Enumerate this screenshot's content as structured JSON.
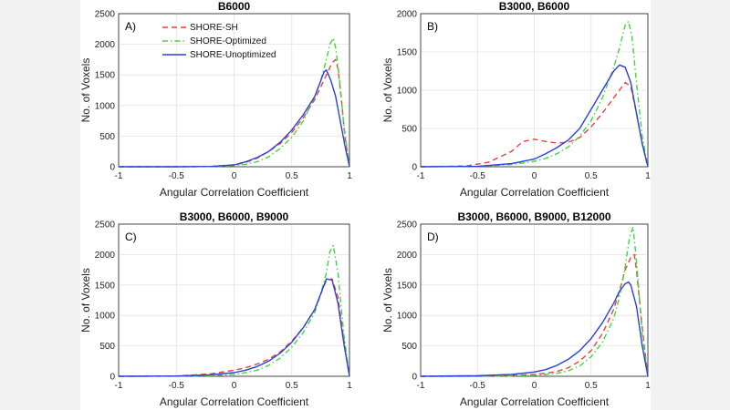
{
  "chart_data": [
    {
      "type": "line",
      "title": "B6000",
      "panel_label": "A)",
      "xlabel": "Angular Correlation Coefficient",
      "ylabel": "No. of Voxels",
      "xlim": [
        -1,
        1
      ],
      "ylim": [
        0,
        2500
      ],
      "xticks": [
        "-1",
        "-0.5",
        "0",
        "0.5",
        "1"
      ],
      "yticks": [
        "0",
        "500",
        "1000",
        "1500",
        "2000",
        "2500"
      ],
      "grid": true,
      "legend": {
        "placement": "top-center"
      },
      "series": [
        {
          "name": "SHORE-SH",
          "color": "#e8423f",
          "dash": "dash",
          "x": [
            -1,
            -0.5,
            -0.2,
            0,
            0.1,
            0.2,
            0.3,
            0.4,
            0.5,
            0.6,
            0.7,
            0.75,
            0.8,
            0.85,
            0.88,
            0.9,
            0.93,
            0.96,
            1
          ],
          "y": [
            0,
            0,
            5,
            30,
            70,
            140,
            250,
            380,
            560,
            800,
            1100,
            1300,
            1500,
            1700,
            1750,
            1600,
            1100,
            500,
            0
          ]
        },
        {
          "name": "SHORE-Optimized",
          "color": "#3fd83f",
          "dash": "dashdot",
          "x": [
            -1,
            -0.5,
            -0.2,
            0,
            0.1,
            0.2,
            0.3,
            0.4,
            0.5,
            0.6,
            0.7,
            0.75,
            0.8,
            0.83,
            0.86,
            0.88,
            0.91,
            0.95,
            1
          ],
          "y": [
            0,
            0,
            3,
            20,
            40,
            80,
            160,
            300,
            480,
            750,
            1150,
            1400,
            1750,
            2000,
            2100,
            1950,
            1500,
            700,
            0
          ]
        },
        {
          "name": "SHORE-Unoptimized",
          "color": "#2a3fe0",
          "dash": "solid",
          "x": [
            -1,
            -0.5,
            -0.2,
            0,
            0.1,
            0.2,
            0.3,
            0.4,
            0.5,
            0.6,
            0.7,
            0.75,
            0.78,
            0.8,
            0.84,
            0.88,
            0.92,
            0.96,
            1
          ],
          "y": [
            0,
            0,
            5,
            30,
            80,
            150,
            250,
            400,
            600,
            850,
            1150,
            1400,
            1550,
            1580,
            1400,
            1150,
            750,
            350,
            0
          ]
        }
      ]
    },
    {
      "type": "line",
      "title": "B3000, B6000",
      "panel_label": "B)",
      "xlabel": "Angular Correlation Coefficient",
      "ylabel": "No. of Voxels",
      "xlim": [
        -1,
        1
      ],
      "ylim": [
        0,
        2000
      ],
      "xticks": [
        "-1",
        "-0.5",
        "0",
        "0.5",
        "1"
      ],
      "yticks": [
        "0",
        "500",
        "1000",
        "1500",
        "2000"
      ],
      "grid": true,
      "series": [
        {
          "name": "SHORE-SH",
          "color": "#e8423f",
          "dash": "dash",
          "x": [
            -1,
            -0.6,
            -0.4,
            -0.2,
            -0.1,
            0,
            0.1,
            0.2,
            0.3,
            0.4,
            0.5,
            0.6,
            0.7,
            0.75,
            0.8,
            0.85,
            0.9,
            0.95,
            1
          ],
          "y": [
            0,
            10,
            60,
            200,
            330,
            360,
            330,
            310,
            320,
            380,
            520,
            700,
            900,
            1000,
            1100,
            1050,
            700,
            300,
            0
          ]
        },
        {
          "name": "SHORE-Optimized",
          "color": "#3fd83f",
          "dash": "dashdot",
          "x": [
            -1,
            -0.5,
            -0.2,
            0,
            0.1,
            0.2,
            0.3,
            0.4,
            0.5,
            0.6,
            0.7,
            0.75,
            0.8,
            0.83,
            0.86,
            0.9,
            0.95,
            1
          ],
          "y": [
            0,
            5,
            30,
            70,
            110,
            170,
            260,
            400,
            600,
            900,
            1300,
            1550,
            1850,
            1900,
            1700,
            1100,
            400,
            0
          ]
        },
        {
          "name": "SHORE-Unoptimized",
          "color": "#2a3fe0",
          "dash": "solid",
          "x": [
            -1,
            -0.5,
            -0.2,
            0,
            0.1,
            0.2,
            0.3,
            0.4,
            0.5,
            0.6,
            0.7,
            0.75,
            0.8,
            0.85,
            0.9,
            0.95,
            1
          ],
          "y": [
            0,
            5,
            40,
            100,
            170,
            250,
            350,
            500,
            750,
            1000,
            1250,
            1330,
            1300,
            1100,
            700,
            300,
            0
          ]
        }
      ]
    },
    {
      "type": "line",
      "title": "B3000, B6000, B9000",
      "panel_label": "C)",
      "xlabel": "Angular Correlation Coefficient",
      "ylabel": "No. of Voxels",
      "xlim": [
        -1,
        1
      ],
      "ylim": [
        0,
        2500
      ],
      "xticks": [
        "-1",
        "-0.5",
        "0",
        "0.5",
        "1"
      ],
      "yticks": [
        "0",
        "500",
        "1000",
        "1500",
        "2000",
        "2500"
      ],
      "grid": true,
      "series": [
        {
          "name": "SHORE-SH",
          "color": "#e8423f",
          "dash": "dash",
          "x": [
            -1,
            -0.5,
            -0.2,
            0,
            0.1,
            0.2,
            0.3,
            0.4,
            0.5,
            0.6,
            0.7,
            0.75,
            0.8,
            0.85,
            0.9,
            0.95,
            1
          ],
          "y": [
            0,
            5,
            40,
            100,
            140,
            200,
            280,
            400,
            580,
            800,
            1100,
            1350,
            1580,
            1600,
            1300,
            600,
            0
          ]
        },
        {
          "name": "SHORE-Optimized",
          "color": "#3fd83f",
          "dash": "dashdot",
          "x": [
            -1,
            -0.5,
            -0.2,
            0,
            0.1,
            0.2,
            0.3,
            0.4,
            0.5,
            0.6,
            0.7,
            0.75,
            0.8,
            0.83,
            0.86,
            0.9,
            0.95,
            1
          ],
          "y": [
            0,
            0,
            10,
            30,
            60,
            100,
            180,
            300,
            480,
            720,
            1050,
            1350,
            1700,
            2050,
            2150,
            1700,
            700,
            0
          ]
        },
        {
          "name": "SHORE-Unoptimized",
          "color": "#2a3fe0",
          "dash": "solid",
          "x": [
            -1,
            -0.5,
            -0.2,
            0,
            0.1,
            0.2,
            0.3,
            0.4,
            0.5,
            0.6,
            0.7,
            0.75,
            0.8,
            0.85,
            0.9,
            0.95,
            1
          ],
          "y": [
            0,
            5,
            25,
            60,
            100,
            160,
            250,
            380,
            560,
            800,
            1100,
            1350,
            1600,
            1580,
            1200,
            550,
            0
          ]
        }
      ]
    },
    {
      "type": "line",
      "title": "B3000, B6000, B9000, B12000",
      "panel_label": "D)",
      "xlabel": "Angular Correlation Coefficient",
      "ylabel": "No. of Voxels",
      "xlim": [
        -1,
        1
      ],
      "ylim": [
        0,
        2500
      ],
      "xticks": [
        "-1",
        "-0.5",
        "0",
        "0.5",
        "1"
      ],
      "yticks": [
        "0",
        "500",
        "1000",
        "1500",
        "2000",
        "2500"
      ],
      "grid": true,
      "series": [
        {
          "name": "SHORE-SH",
          "color": "#e8423f",
          "dash": "dash",
          "x": [
            -1,
            -0.5,
            -0.2,
            0,
            0.1,
            0.2,
            0.3,
            0.4,
            0.5,
            0.6,
            0.7,
            0.75,
            0.8,
            0.85,
            0.88,
            0.9,
            0.95,
            1
          ],
          "y": [
            0,
            0,
            10,
            30,
            50,
            80,
            140,
            250,
            420,
            700,
            1100,
            1400,
            1750,
            1950,
            2000,
            1750,
            800,
            0
          ]
        },
        {
          "name": "SHORE-Optimized",
          "color": "#3fd83f",
          "dash": "dashdot",
          "x": [
            -1,
            -0.5,
            -0.2,
            0,
            0.1,
            0.2,
            0.3,
            0.4,
            0.5,
            0.6,
            0.7,
            0.75,
            0.8,
            0.84,
            0.87,
            0.9,
            0.95,
            1
          ],
          "y": [
            0,
            0,
            5,
            15,
            30,
            50,
            90,
            170,
            320,
            560,
            950,
            1300,
            1800,
            2300,
            2450,
            1900,
            700,
            0
          ]
        },
        {
          "name": "SHORE-Unoptimized",
          "color": "#2a3fe0",
          "dash": "solid",
          "x": [
            -1,
            -0.5,
            -0.2,
            0,
            0.1,
            0.2,
            0.3,
            0.4,
            0.5,
            0.6,
            0.7,
            0.75,
            0.8,
            0.83,
            0.85,
            0.9,
            0.95,
            1
          ],
          "y": [
            0,
            10,
            30,
            70,
            110,
            180,
            280,
            420,
            620,
            880,
            1200,
            1400,
            1520,
            1550,
            1500,
            1150,
            500,
            0
          ]
        }
      ]
    }
  ]
}
